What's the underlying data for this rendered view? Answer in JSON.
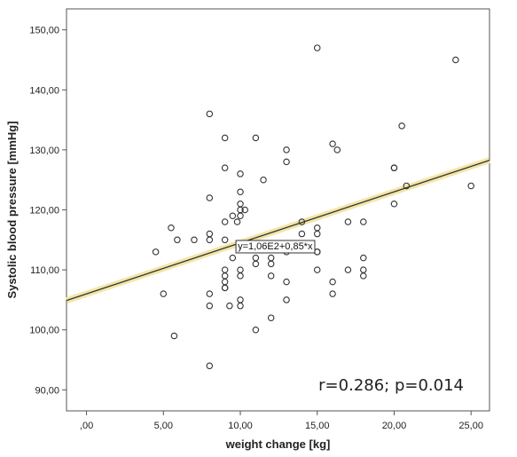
{
  "chart_data": {
    "type": "scatter",
    "xlabel": "weight change [kg]",
    "ylabel": "Systolic blood pressure [mmHg]",
    "xlim": [
      -1.3,
      26.2
    ],
    "ylim": [
      86.5,
      153.5
    ],
    "x_ticks": [
      {
        "value": 0,
        "label": ",00"
      },
      {
        "value": 5,
        "label": "5,00"
      },
      {
        "value": 10,
        "label": "10,00"
      },
      {
        "value": 15,
        "label": "15,00"
      },
      {
        "value": 20,
        "label": "20,00"
      },
      {
        "value": 25,
        "label": "25,00"
      }
    ],
    "y_ticks": [
      {
        "value": 90,
        "label": "90,00"
      },
      {
        "value": 100,
        "label": "100,00"
      },
      {
        "value": 110,
        "label": "110,00"
      },
      {
        "value": 120,
        "label": "120,00"
      },
      {
        "value": 130,
        "label": "130,00"
      },
      {
        "value": 140,
        "label": "140,00"
      },
      {
        "value": 150,
        "label": "150,00"
      }
    ],
    "grid": false,
    "points": [
      [
        4.5,
        113
      ],
      [
        5.0,
        106
      ],
      [
        5.5,
        117
      ],
      [
        5.7,
        99
      ],
      [
        5.9,
        115
      ],
      [
        7.0,
        115
      ],
      [
        8.0,
        136
      ],
      [
        8.0,
        122
      ],
      [
        8.0,
        116
      ],
      [
        8.0,
        115
      ],
      [
        8.0,
        106
      ],
      [
        8.0,
        104
      ],
      [
        8.0,
        94
      ],
      [
        9.0,
        132
      ],
      [
        9.0,
        127
      ],
      [
        9.0,
        118
      ],
      [
        9.0,
        115
      ],
      [
        9.0,
        110
      ],
      [
        9.0,
        109
      ],
      [
        9.0,
        108
      ],
      [
        9.0,
        107
      ],
      [
        9.0,
        107
      ],
      [
        9.3,
        104
      ],
      [
        9.5,
        112
      ],
      [
        9.5,
        119
      ],
      [
        9.8,
        118
      ],
      [
        10.0,
        126
      ],
      [
        10.0,
        123
      ],
      [
        10.0,
        121
      ],
      [
        10.0,
        120
      ],
      [
        10.0,
        119
      ],
      [
        10.0,
        110
      ],
      [
        10.0,
        109
      ],
      [
        10.0,
        105
      ],
      [
        10.0,
        104
      ],
      [
        10.3,
        120
      ],
      [
        11.0,
        132
      ],
      [
        11.0,
        112
      ],
      [
        11.0,
        111
      ],
      [
        11.0,
        100
      ],
      [
        11.5,
        125
      ],
      [
        12.0,
        112
      ],
      [
        12.0,
        111
      ],
      [
        12.0,
        109
      ],
      [
        12.0,
        102
      ],
      [
        13.0,
        130
      ],
      [
        13.0,
        128
      ],
      [
        13.0,
        113
      ],
      [
        13.0,
        108
      ],
      [
        13.0,
        105
      ],
      [
        14.0,
        118
      ],
      [
        14.0,
        116
      ],
      [
        15.0,
        147
      ],
      [
        15.0,
        117
      ],
      [
        15.0,
        116
      ],
      [
        15.0,
        113
      ],
      [
        15.0,
        113
      ],
      [
        15.0,
        110
      ],
      [
        16.0,
        131
      ],
      [
        16.0,
        108
      ],
      [
        16.0,
        106
      ],
      [
        16.3,
        130
      ],
      [
        17.0,
        118
      ],
      [
        17.0,
        110
      ],
      [
        18.0,
        118
      ],
      [
        18.0,
        112
      ],
      [
        18.0,
        110
      ],
      [
        18.0,
        109
      ],
      [
        20.0,
        127
      ],
      [
        20.0,
        127
      ],
      [
        20.0,
        121
      ],
      [
        20.5,
        134
      ],
      [
        20.8,
        124
      ],
      [
        24.0,
        145
      ],
      [
        25.0,
        124
      ]
    ],
    "fit_line": {
      "equation": "y=1,06E2+0,85*x",
      "intercept": 106,
      "slope": 0.85,
      "line_color": "#333333",
      "ci_color": "#f2e6a8"
    },
    "annotation": "r=0.286; p=0.014",
    "marker_color": "#333333"
  }
}
